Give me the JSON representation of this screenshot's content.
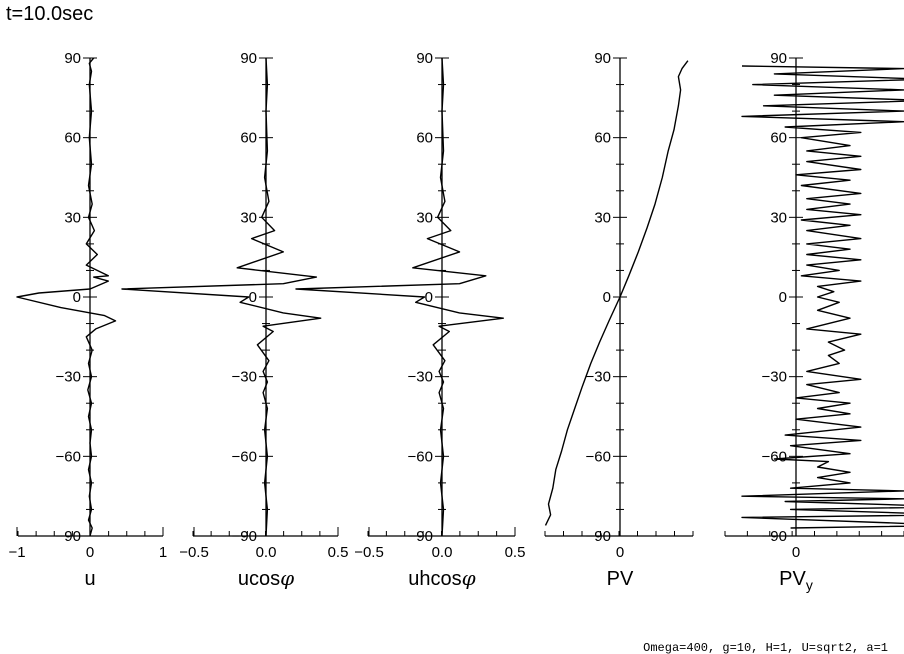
{
  "title": "t=10.0sec",
  "footer": "Omega=400, g=10, H=1, U=sqrt2, a=1",
  "chart_data": [
    {
      "type": "line",
      "xlabel": "u",
      "ylim": [
        -90,
        90
      ],
      "xlim": [
        -1,
        1
      ],
      "xticks": [
        -1,
        0,
        1
      ],
      "xtick_labels": [
        "−1",
        "0",
        "1"
      ],
      "yticks": [
        90,
        60,
        30,
        0,
        -30,
        -60,
        -90
      ],
      "ytick_labels": [
        "90",
        "60",
        "30",
        "0",
        "−30",
        "−60",
        "−90"
      ],
      "series": [
        {
          "points": [
            [
              0,
              -90
            ],
            [
              0.03,
              -87
            ],
            [
              -0.02,
              -84
            ],
            [
              0.02,
              -80
            ],
            [
              -0.01,
              -75
            ],
            [
              0.02,
              -70
            ],
            [
              -0.02,
              -65
            ],
            [
              0.02,
              -60
            ],
            [
              0,
              -55
            ],
            [
              0.02,
              -50
            ],
            [
              -0.02,
              -45
            ],
            [
              0.02,
              -40
            ],
            [
              -0.03,
              -35
            ],
            [
              0.02,
              -30
            ],
            [
              -0.02,
              -25
            ],
            [
              0.03,
              -20
            ],
            [
              -0.05,
              -15
            ],
            [
              0.08,
              -12
            ],
            [
              0.35,
              -9
            ],
            [
              0.2,
              -7
            ],
            [
              -0.4,
              -4
            ],
            [
              -1,
              0
            ],
            [
              -0.7,
              1.5
            ],
            [
              0,
              3
            ],
            [
              0.25,
              6
            ],
            [
              0.05,
              7.5
            ],
            [
              0.25,
              8
            ],
            [
              -0.05,
              12
            ],
            [
              0.1,
              16
            ],
            [
              -0.05,
              20
            ],
            [
              0.06,
              25
            ],
            [
              -0.02,
              30
            ],
            [
              0.03,
              35
            ],
            [
              -0.02,
              42
            ],
            [
              0.02,
              50
            ],
            [
              -0.01,
              60
            ],
            [
              0.02,
              70
            ],
            [
              -0.01,
              80
            ],
            [
              0.02,
              85
            ],
            [
              -0.01,
              88
            ],
            [
              0.05,
              90
            ]
          ]
        }
      ]
    },
    {
      "type": "line",
      "xlabel": "ucosφ",
      "ylim": [
        -90,
        90
      ],
      "xlim": [
        -0.5,
        0.5
      ],
      "xticks": [
        -0.5,
        0,
        0.5
      ],
      "xtick_labels": [
        "−0.5",
        "0.0",
        "0.5"
      ],
      "yticks": [
        90,
        60,
        30,
        0,
        -30,
        -60,
        -90
      ],
      "ytick_labels": [
        "90",
        "60",
        "30",
        "0",
        "−30",
        "−60",
        "−90"
      ],
      "series": [
        {
          "points": [
            [
              0,
              -90
            ],
            [
              0.01,
              -80
            ],
            [
              -0.01,
              -70
            ],
            [
              0.01,
              -60
            ],
            [
              -0.01,
              -50
            ],
            [
              0.01,
              -42
            ],
            [
              -0.02,
              -36
            ],
            [
              0.01,
              -32
            ],
            [
              -0.02,
              -28
            ],
            [
              0.02,
              -24
            ],
            [
              -0.06,
              -18
            ],
            [
              0.05,
              -13
            ],
            [
              -0.02,
              -11
            ],
            [
              0.38,
              -8
            ],
            [
              0.12,
              -6
            ],
            [
              -0.18,
              -2
            ],
            [
              -0.12,
              0
            ],
            [
              -1,
              3
            ],
            [
              0.12,
              5
            ],
            [
              0.35,
              7.5
            ],
            [
              -0.2,
              11
            ],
            [
              0.12,
              17
            ],
            [
              -0.1,
              22
            ],
            [
              0.06,
              25
            ],
            [
              -0.03,
              30
            ],
            [
              0.02,
              36
            ],
            [
              -0.01,
              45
            ],
            [
              0.01,
              55
            ],
            [
              0,
              70
            ],
            [
              0.01,
              80
            ],
            [
              0,
              90
            ]
          ]
        }
      ]
    },
    {
      "type": "line",
      "xlabel": "uhcosφ",
      "ylim": [
        -90,
        90
      ],
      "xlim": [
        -0.5,
        0.5
      ],
      "xticks": [
        -0.5,
        0,
        0.5
      ],
      "xtick_labels": [
        "−0.5",
        "0.0",
        "0.5"
      ],
      "yticks": [
        90,
        60,
        30,
        0,
        -30,
        -60,
        -90
      ],
      "ytick_labels": [
        "90",
        "60",
        "30",
        "0",
        "−30",
        "−60",
        "−90"
      ],
      "series": [
        {
          "points": [
            [
              0,
              -90
            ],
            [
              0.01,
              -80
            ],
            [
              -0.01,
              -70
            ],
            [
              0.01,
              -60
            ],
            [
              -0.01,
              -50
            ],
            [
              0.01,
              -42
            ],
            [
              -0.02,
              -36
            ],
            [
              0.01,
              -32
            ],
            [
              -0.02,
              -28
            ],
            [
              0.02,
              -24
            ],
            [
              -0.06,
              -18
            ],
            [
              0.05,
              -13
            ],
            [
              -0.02,
              -11
            ],
            [
              0.42,
              -8
            ],
            [
              0.12,
              -6
            ],
            [
              -0.18,
              -2
            ],
            [
              -0.12,
              0
            ],
            [
              -1,
              3
            ],
            [
              0.12,
              5
            ],
            [
              0.3,
              8
            ],
            [
              -0.2,
              11
            ],
            [
              0.12,
              17
            ],
            [
              -0.1,
              22
            ],
            [
              0.06,
              25
            ],
            [
              -0.03,
              30
            ],
            [
              0.02,
              36
            ],
            [
              -0.01,
              45
            ],
            [
              0.01,
              55
            ],
            [
              0,
              70
            ],
            [
              0.01,
              80
            ],
            [
              0,
              90
            ]
          ]
        }
      ]
    },
    {
      "type": "line",
      "xlabel": "PV",
      "ylim": [
        -90,
        90
      ],
      "xlim": [
        -1,
        1
      ],
      "xticks": [
        0
      ],
      "xtick_labels": [
        "0"
      ],
      "yticks": [
        90,
        60,
        30,
        0,
        -30,
        -60,
        -90
      ],
      "ytick_labels": [
        "90",
        "60",
        "30",
        "0",
        "−30",
        "−60",
        "−90"
      ],
      "series": [
        {
          "points": [
            [
              -1.02,
              -86
            ],
            [
              -0.95,
              -82
            ],
            [
              -0.98,
              -78
            ],
            [
              -0.92,
              -72
            ],
            [
              -0.88,
              -65
            ],
            [
              -0.8,
              -58
            ],
            [
              -0.72,
              -50
            ],
            [
              -0.62,
              -42
            ],
            [
              -0.52,
              -34
            ],
            [
              -0.4,
              -25
            ],
            [
              -0.28,
              -17
            ],
            [
              -0.15,
              -9
            ],
            [
              0,
              0
            ],
            [
              0.12,
              8
            ],
            [
              0.25,
              17
            ],
            [
              0.37,
              26
            ],
            [
              0.48,
              35
            ],
            [
              0.58,
              45
            ],
            [
              0.66,
              55
            ],
            [
              0.74,
              63
            ],
            [
              0.8,
              72
            ],
            [
              0.83,
              78
            ],
            [
              0.8,
              83
            ],
            [
              0.85,
              86
            ],
            [
              0.93,
              89
            ]
          ]
        }
      ]
    },
    {
      "type": "line",
      "xlabel": "PVy",
      "ylim": [
        -90,
        90
      ],
      "xlim": [
        -1,
        1
      ],
      "xticks": [
        0
      ],
      "xtick_labels": [
        "0"
      ],
      "yticks": [
        90,
        60,
        30,
        0,
        -30,
        -60,
        -90
      ],
      "ytick_labels": [
        "90",
        "60",
        "30",
        "0",
        "−30",
        "−60",
        "−90"
      ],
      "series": [
        {
          "points": [
            [
              -0.05,
              -87
            ],
            [
              1.5,
              -86
            ],
            [
              -0.5,
              -83
            ],
            [
              1.5,
              -82
            ],
            [
              -0.05,
              -80
            ],
            [
              1.5,
              -79
            ],
            [
              -0.1,
              -77
            ],
            [
              1,
              -76
            ],
            [
              -0.5,
              -75
            ],
            [
              1,
              -73
            ],
            [
              -0.05,
              -72
            ],
            [
              0.5,
              -70
            ],
            [
              0.2,
              -68
            ],
            [
              0.5,
              -66
            ],
            [
              0.2,
              -64
            ],
            [
              0.3,
              -62
            ],
            [
              -0.2,
              -61
            ],
            [
              0.5,
              -59
            ],
            [
              -0.05,
              -56
            ],
            [
              0.6,
              -54
            ],
            [
              -0.1,
              -52
            ],
            [
              0.6,
              -49
            ],
            [
              0,
              -46
            ],
            [
              0.5,
              -44
            ],
            [
              0.2,
              -42
            ],
            [
              0.5,
              -40
            ],
            [
              0,
              -38
            ],
            [
              0.4,
              -36
            ],
            [
              0.1,
              -33
            ],
            [
              0.6,
              -31
            ],
            [
              0.1,
              -28
            ],
            [
              0.4,
              -25
            ],
            [
              0.3,
              -22
            ],
            [
              0.45,
              -20
            ],
            [
              0.3,
              -17
            ],
            [
              0.6,
              -14
            ],
            [
              0.1,
              -12
            ],
            [
              0.5,
              -8
            ],
            [
              0.2,
              -5
            ],
            [
              0.4,
              -2
            ],
            [
              0.2,
              0
            ],
            [
              0.35,
              2
            ],
            [
              0.2,
              4
            ],
            [
              0.6,
              6
            ],
            [
              0.05,
              8
            ],
            [
              0.4,
              10
            ],
            [
              0.1,
              12
            ],
            [
              0.6,
              14
            ],
            [
              0.1,
              16
            ],
            [
              0.5,
              18
            ],
            [
              0.1,
              20
            ],
            [
              0.6,
              22
            ],
            [
              0.1,
              25
            ],
            [
              0.5,
              27
            ],
            [
              0.05,
              29
            ],
            [
              0.6,
              31
            ],
            [
              0.1,
              33
            ],
            [
              0.5,
              35
            ],
            [
              0.1,
              37
            ],
            [
              0.6,
              39
            ],
            [
              0.05,
              42
            ],
            [
              0.5,
              44
            ],
            [
              0,
              46
            ],
            [
              0.6,
              48
            ],
            [
              0.1,
              51
            ],
            [
              0.6,
              53
            ],
            [
              0.1,
              55
            ],
            [
              0.5,
              57
            ],
            [
              0.05,
              60
            ],
            [
              0.6,
              62
            ],
            [
              -0.1,
              64
            ],
            [
              1,
              66
            ],
            [
              -0.5,
              68
            ],
            [
              1,
              70
            ],
            [
              -0.3,
              72
            ],
            [
              1.2,
              74
            ],
            [
              -0.2,
              76
            ],
            [
              1,
              78
            ],
            [
              -0.4,
              80
            ],
            [
              1.2,
              82
            ],
            [
              -0.2,
              84
            ],
            [
              1,
              86
            ],
            [
              -0.5,
              87
            ]
          ]
        }
      ]
    }
  ]
}
